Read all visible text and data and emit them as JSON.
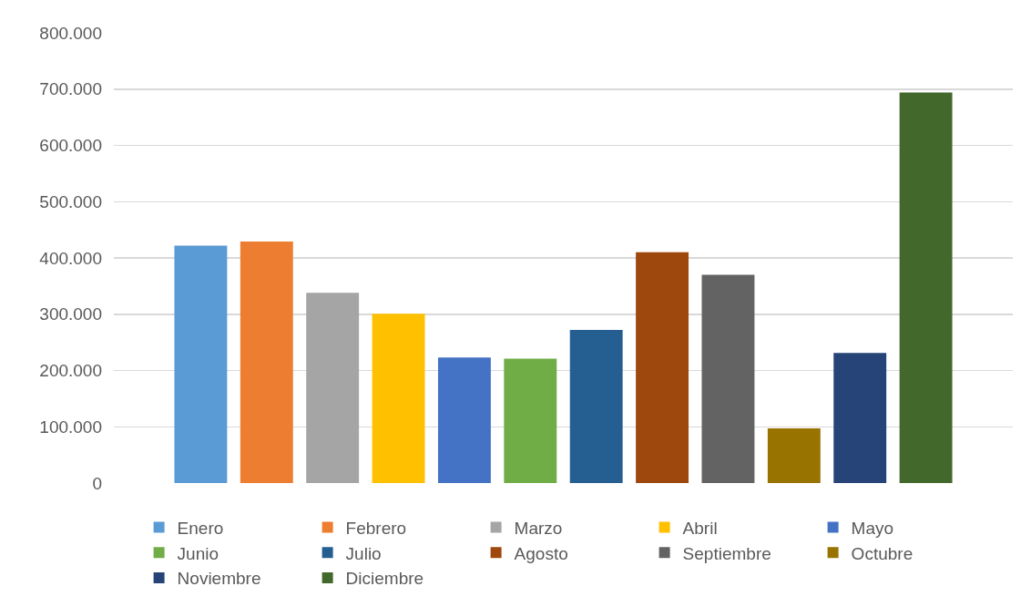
{
  "chart_data": {
    "type": "bar",
    "categories": [
      null
    ],
    "series": [
      {
        "name": "Enero",
        "color": "#5b9bd5",
        "values": [
          422000
        ]
      },
      {
        "name": "Febrero",
        "color": "#ed7d31",
        "values": [
          429000
        ]
      },
      {
        "name": "Marzo",
        "color": "#a5a5a5",
        "values": [
          338000
        ]
      },
      {
        "name": "Abril",
        "color": "#ffc000",
        "values": [
          301000
        ]
      },
      {
        "name": "Mayo",
        "color": "#4472c4",
        "values": [
          223000
        ]
      },
      {
        "name": "Junio",
        "color": "#70ad47",
        "values": [
          221000
        ]
      },
      {
        "name": "Julio",
        "color": "#255e91",
        "values": [
          272000
        ]
      },
      {
        "name": "Agosto",
        "color": "#9e480e",
        "values": [
          410000
        ]
      },
      {
        "name": "Septiembre",
        "color": "#636363",
        "values": [
          370000
        ]
      },
      {
        "name": "Octubre",
        "color": "#997300",
        "values": [
          97000
        ]
      },
      {
        "name": "Noviembre",
        "color": "#264478",
        "values": [
          231000
        ]
      },
      {
        "name": "Diciembre",
        "color": "#43682b",
        "values": [
          694000
        ]
      }
    ],
    "ylim": [
      0,
      800000
    ],
    "yticks": [
      {
        "value": 0,
        "label": "0"
      },
      {
        "value": 100000,
        "label": "100.000"
      },
      {
        "value": 200000,
        "label": "200.000"
      },
      {
        "value": 300000,
        "label": "300.000"
      },
      {
        "value": 400000,
        "label": "400.000"
      },
      {
        "value": 500000,
        "label": "500.000"
      },
      {
        "value": 600000,
        "label": "600.000"
      },
      {
        "value": 700000,
        "label": "700.000"
      },
      {
        "value": 800000,
        "label": "800.000"
      }
    ],
    "grid": "y",
    "legend": "bottom",
    "tick_labels": "y"
  }
}
